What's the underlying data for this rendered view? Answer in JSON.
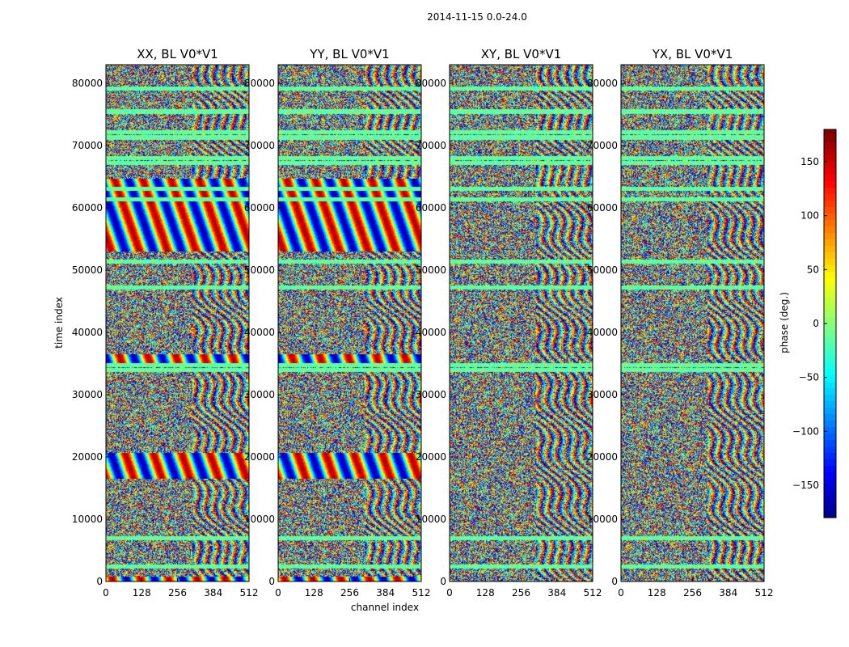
{
  "chart_data": {
    "type": "heatmap",
    "suptitle": "2014-11-15 0.0-24.0",
    "panels": [
      {
        "title": "XX, BL V0*V1"
      },
      {
        "title": "YY, BL V0*V1"
      },
      {
        "title": "XY, BL V0*V1"
      },
      {
        "title": "YX, BL V0*V1"
      }
    ],
    "xlabel": "channel index",
    "ylabel": "time index",
    "xlim": [
      0,
      512
    ],
    "ylim": [
      0,
      83000
    ],
    "xticks": [
      0,
      128,
      256,
      384,
      512
    ],
    "yticks": [
      0,
      10000,
      20000,
      30000,
      40000,
      50000,
      60000,
      70000,
      80000
    ],
    "colorbar": {
      "label": "phase (deg.)",
      "range": [
        -180,
        180
      ],
      "ticks": [
        -150,
        -100,
        -50,
        0,
        50,
        100,
        150
      ],
      "colormap": "jet",
      "tick_labels": [
        "−150",
        "−100",
        "−50",
        "0",
        "50",
        "100",
        "150"
      ]
    }
  }
}
